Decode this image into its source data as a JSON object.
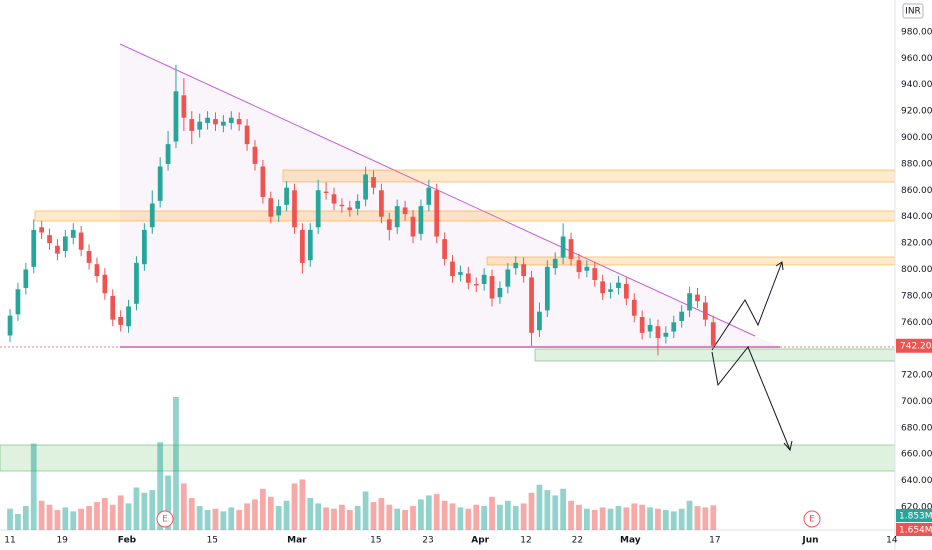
{
  "chart_data": {
    "type": "candlestick",
    "currency": "INR",
    "x": [
      0,
      1,
      2,
      3,
      4,
      5,
      6,
      7,
      8,
      9,
      10,
      11,
      12,
      13,
      14,
      15,
      16,
      17,
      18,
      19,
      20,
      21,
      22,
      23,
      24,
      25,
      26,
      27,
      28,
      29,
      30,
      31,
      32,
      33,
      34,
      35,
      36,
      37,
      38,
      39,
      40,
      41,
      42,
      43,
      44,
      45,
      46,
      47,
      48,
      49,
      50,
      51,
      52,
      53,
      54,
      55,
      56,
      57,
      58,
      59,
      60,
      61,
      62,
      63,
      64,
      65,
      66,
      67,
      68,
      69,
      70,
      71,
      72,
      73,
      74,
      75,
      76,
      77,
      78,
      79,
      80,
      81,
      82,
      83,
      84,
      85,
      86,
      87,
      88,
      89
    ],
    "open": [
      750,
      766,
      786,
      802,
      832,
      826,
      818,
      814,
      824,
      828,
      814,
      804,
      796,
      780,
      764,
      757,
      774,
      804,
      832,
      852,
      880,
      897,
      932,
      914,
      906,
      911,
      914,
      909,
      911,
      914,
      909,
      893,
      878,
      854,
      841,
      849,
      860,
      830,
      807,
      832,
      859,
      857,
      849,
      847,
      846,
      853,
      870,
      860,
      838,
      832,
      847,
      840,
      827,
      849,
      860,
      823,
      806,
      796,
      797,
      789,
      789,
      795,
      779,
      787,
      801,
      804,
      794,
      754,
      769,
      801,
      809,
      823,
      807,
      799,
      801,
      791,
      783,
      786,
      789,
      777,
      764,
      753,
      757,
      749,
      753,
      761,
      769,
      781,
      775,
      760
    ],
    "high": [
      770,
      790,
      805,
      838,
      837,
      831,
      823,
      830,
      835,
      833,
      819,
      809,
      801,
      785,
      769,
      777,
      810,
      835,
      860,
      885,
      905,
      955,
      945,
      920,
      918,
      920,
      919,
      917,
      920,
      919,
      914,
      898,
      883,
      859,
      853,
      867,
      865,
      835,
      835,
      868,
      866,
      862,
      854,
      852,
      857,
      878,
      875,
      865,
      843,
      853,
      852,
      845,
      853,
      868,
      865,
      828,
      811,
      803,
      802,
      794,
      801,
      800,
      791,
      805,
      810,
      809,
      799,
      775,
      807,
      813,
      835,
      828,
      812,
      807,
      806,
      796,
      790,
      795,
      794,
      782,
      769,
      763,
      762,
      757,
      765,
      773,
      787,
      786,
      780,
      765
    ],
    "low": [
      745,
      761,
      781,
      797,
      823,
      815,
      807,
      809,
      819,
      810,
      800,
      790,
      777,
      757,
      753,
      752,
      769,
      799,
      827,
      847,
      875,
      892,
      905,
      895,
      900,
      906,
      905,
      904,
      906,
      905,
      890,
      875,
      850,
      835,
      836,
      844,
      827,
      797,
      802,
      827,
      853,
      845,
      843,
      840,
      841,
      848,
      857,
      835,
      822,
      827,
      837,
      820,
      822,
      844,
      820,
      803,
      790,
      791,
      785,
      783,
      784,
      772,
      774,
      782,
      796,
      790,
      742,
      749,
      764,
      796,
      804,
      803,
      793,
      794,
      787,
      777,
      778,
      781,
      773,
      760,
      747,
      748,
      735,
      744,
      748,
      756,
      764,
      771,
      757,
      740
    ],
    "close": [
      765,
      785,
      800,
      830,
      828,
      820,
      812,
      825,
      830,
      815,
      805,
      795,
      782,
      762,
      758,
      772,
      805,
      830,
      850,
      878,
      895,
      935,
      915,
      905,
      912,
      915,
      910,
      912,
      915,
      910,
      895,
      880,
      855,
      840,
      848,
      862,
      832,
      805,
      830,
      860,
      858,
      850,
      848,
      845,
      852,
      872,
      862,
      840,
      830,
      848,
      842,
      825,
      848,
      862,
      825,
      808,
      795,
      798,
      790,
      788,
      796,
      778,
      786,
      800,
      805,
      795,
      752,
      768,
      802,
      808,
      825,
      808,
      798,
      802,
      792,
      782,
      785,
      790,
      778,
      765,
      752,
      758,
      748,
      752,
      760,
      768,
      782,
      776,
      762,
      742.2
    ],
    "volume": [
      1.6,
      1.2,
      1.8,
      6.5,
      2.2,
      1.9,
      1.5,
      1.7,
      1.4,
      1.6,
      1.8,
      2.1,
      2.4,
      1.9,
      2.6,
      2.0,
      3.2,
      2.8,
      3.0,
      6.6,
      4.1,
      10.0,
      3.5,
      2.4,
      1.8,
      1.5,
      1.6,
      1.4,
      1.7,
      1.5,
      2.0,
      2.3,
      3.1,
      2.5,
      1.8,
      2.2,
      3.5,
      3.8,
      2.4,
      2.0,
      1.7,
      1.6,
      1.9,
      1.5,
      1.8,
      2.9,
      2.1,
      2.4,
      1.9,
      1.6,
      1.5,
      1.8,
      2.3,
      2.6,
      2.7,
      2.2,
      2.0,
      1.7,
      1.6,
      1.9,
      1.8,
      2.5,
      1.9,
      2.2,
      1.8,
      2.0,
      2.8,
      3.4,
      3.0,
      2.6,
      3.1,
      2.2,
      1.9,
      1.6,
      1.5,
      1.7,
      1.6,
      1.8,
      1.7,
      2.0,
      1.9,
      1.7,
      1.6,
      1.5,
      1.4,
      1.6,
      2.2,
      1.8,
      1.7,
      1.853
    ],
    "up_color": "#26a69a",
    "down_color": "#ef5350",
    "xlim": [
      -1.27,
      112.0
    ],
    "ylim": [
      602.6,
      1004.2
    ],
    "grid": false,
    "xticks": [
      {
        "value": 0,
        "label": "11"
      },
      {
        "value": 6.6,
        "label": "19"
      },
      {
        "value": 14.8,
        "label": "Feb"
      },
      {
        "value": 25.6,
        "label": "15"
      },
      {
        "value": 36.3,
        "label": "Mar"
      },
      {
        "value": 46.3,
        "label": "15"
      },
      {
        "value": 52.9,
        "label": "23"
      },
      {
        "value": 59.5,
        "label": "Apr"
      },
      {
        "value": 65.3,
        "label": "12"
      },
      {
        "value": 71.8,
        "label": "22"
      },
      {
        "value": 78.5,
        "label": "May"
      },
      {
        "value": 89.2,
        "label": "17"
      },
      {
        "value": 101.3,
        "label": "Jun"
      },
      {
        "value": 111.6,
        "label": "14"
      }
    ],
    "yticks": [
      {
        "value": 620,
        "label": "620.00"
      },
      {
        "value": 640,
        "label": "640.00"
      },
      {
        "value": 660,
        "label": "660.00"
      },
      {
        "value": 680,
        "label": "680.00"
      },
      {
        "value": 700,
        "label": "700.00"
      },
      {
        "value": 720,
        "label": "720.00"
      },
      {
        "value": 740,
        "label": "740.00"
      },
      {
        "value": 760,
        "label": "760.00"
      },
      {
        "value": 780,
        "label": "780.00"
      },
      {
        "value": 800,
        "label": "800.00"
      },
      {
        "value": 820,
        "label": "820.00"
      },
      {
        "value": 840,
        "label": "840.00"
      },
      {
        "value": 860,
        "label": "860.00"
      },
      {
        "value": 880,
        "label": "880.00"
      },
      {
        "value": 900,
        "label": "900.00"
      },
      {
        "value": 920,
        "label": "920.00"
      },
      {
        "value": 940,
        "label": "940.00"
      },
      {
        "value": 960,
        "label": "960.00"
      },
      {
        "value": 980,
        "label": "980.00"
      }
    ],
    "last_price": {
      "value": 742.2,
      "label": "742.20"
    },
    "volume_labels": [
      "1.853M",
      "1.654M"
    ],
    "earnings_markers": [
      "E",
      "E"
    ]
  }
}
